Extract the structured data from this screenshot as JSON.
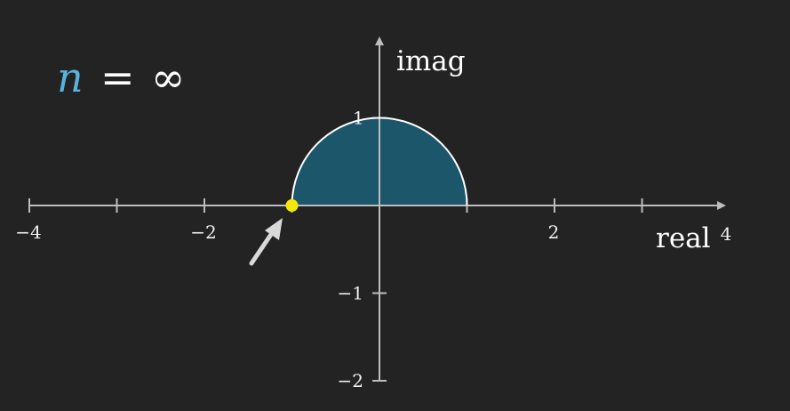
{
  "equation": {
    "variable": "n",
    "operator": "=",
    "value": "∞",
    "variable_color": "#58b4dc"
  },
  "axes": {
    "x_title": "real",
    "y_title": "imag",
    "x_range": [
      -4,
      4
    ],
    "y_range": [
      -2,
      1
    ],
    "x_ticks": [
      -4,
      -3,
      -2,
      -1,
      0,
      1,
      2,
      3
    ],
    "y_ticks": [
      1,
      -1,
      -2
    ],
    "x_tick_labels": [
      {
        "value": -4,
        "label": "−4"
      },
      {
        "value": -2,
        "label": "−2"
      },
      {
        "value": 2,
        "label": "2"
      },
      {
        "value": 4,
        "label": "4"
      }
    ],
    "y_tick_labels": [
      {
        "value": 1,
        "label": "1"
      },
      {
        "value": -1,
        "label": "−1"
      },
      {
        "value": -2,
        "label": "−2"
      }
    ],
    "color": "#bdbdbd"
  },
  "region": {
    "shape": "upper half unit disk",
    "center": [
      0,
      0
    ],
    "radius": 1,
    "fill": "#1b5a70",
    "stroke": "#ffffff"
  },
  "point": {
    "x": -1,
    "y": 0,
    "color": "#f5e60a"
  },
  "pointer": {
    "shape": "arrow",
    "points_to": "point",
    "color": "#d9d9d9"
  }
}
